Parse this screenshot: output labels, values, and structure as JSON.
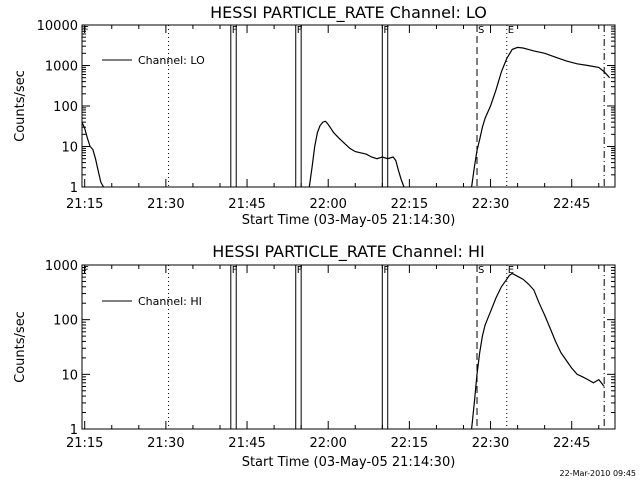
{
  "footer": "22-Mar-2010 09:45",
  "chart_data": [
    {
      "type": "line",
      "title": "HESSI PARTICLE_RATE Channel: LO",
      "xlabel": "Start Time (03-May-05 21:14:30)",
      "ylabel": "Counts/sec",
      "y_scale": "log",
      "ylim": [
        1,
        10000
      ],
      "xlim": [
        "21:14:30",
        "22:53:00"
      ],
      "x_ticks": [
        "21:15",
        "21:30",
        "21:45",
        "22:00",
        "22:15",
        "22:30",
        "22:45"
      ],
      "y_ticks": [
        "1",
        "10",
        "100",
        "1000",
        "10000"
      ],
      "legend": "top-left",
      "series": [
        {
          "name": "Channel: LO",
          "segments": [
            {
              "x": [
                "21:14:30",
                "21:15:00",
                "21:15:30",
                "21:16:00",
                "21:16:30",
                "21:17:00",
                "21:17:30",
                "21:18:00",
                "21:18:30"
              ],
              "y": [
                40,
                28,
                16,
                10,
                8.5,
                5,
                2.5,
                1.3,
                1
              ]
            },
            {
              "x": [
                "21:56:30",
                "21:57:00",
                "21:57:30",
                "21:58:00",
                "21:58:30",
                "21:59:00",
                "21:59:30",
                "22:00:00",
                "22:00:30",
                "22:01:00",
                "22:02:00",
                "22:03:00",
                "22:04:00",
                "22:05:00",
                "22:06:00",
                "22:07:00",
                "22:08:00",
                "22:09:00",
                "22:10:00",
                "22:11:00",
                "22:12:00",
                "22:12:30",
                "22:13:00",
                "22:13:30",
                "22:14:00"
              ],
              "y": [
                1,
                3,
                10,
                22,
                33,
                40,
                42,
                35,
                28,
                22,
                16,
                12,
                9,
                7.5,
                7,
                6.5,
                5.5,
                5,
                5.5,
                5,
                5.5,
                4.5,
                2.5,
                1.5,
                1
              ]
            },
            {
              "x": [
                "22:26:30",
                "22:27:00",
                "22:27:30",
                "22:28:00",
                "22:28:30",
                "22:29:00",
                "22:30:00",
                "22:31:00",
                "22:32:00",
                "22:33:00",
                "22:34:00",
                "22:35:00",
                "22:36:00",
                "22:37:00",
                "22:38:00",
                "22:40:00",
                "22:42:00",
                "22:44:00",
                "22:46:00",
                "22:48:00",
                "22:50:00",
                "22:51:00",
                "22:52:00"
              ],
              "y": [
                1,
                3,
                8,
                15,
                30,
                50,
                100,
                250,
                700,
                1500,
                2500,
                2800,
                2700,
                2500,
                2300,
                2000,
                1600,
                1300,
                1100,
                1000,
                900,
                700,
                500
              ]
            }
          ]
        }
      ],
      "markers": [
        {
          "label": "F",
          "x": "21:14:30",
          "style": "solid"
        },
        {
          "label": "",
          "x": "21:30:30",
          "style": "dotted"
        },
        {
          "label": "F",
          "x": "21:42:00",
          "style": "solid"
        },
        {
          "label": "",
          "x": "21:43:00",
          "style": "solid"
        },
        {
          "label": "F",
          "x": "21:54:00",
          "style": "solid"
        },
        {
          "label": "",
          "x": "21:55:00",
          "style": "solid"
        },
        {
          "label": "F",
          "x": "22:10:00",
          "style": "solid"
        },
        {
          "label": "",
          "x": "22:11:00",
          "style": "solid"
        },
        {
          "label": "S",
          "x": "22:27:30",
          "style": "dashed"
        },
        {
          "label": "E",
          "x": "22:33:00",
          "style": "dotted"
        },
        {
          "label": "",
          "x": "22:51:00",
          "style": "dashdot"
        }
      ]
    },
    {
      "type": "line",
      "title": "HESSI PARTICLE_RATE Channel: HI",
      "xlabel": "Start Time (03-May-05 21:14:30)",
      "ylabel": "Counts/sec",
      "y_scale": "log",
      "ylim": [
        1,
        1000
      ],
      "xlim": [
        "21:14:30",
        "22:53:00"
      ],
      "x_ticks": [
        "21:15",
        "21:30",
        "21:45",
        "22:00",
        "22:15",
        "22:30",
        "22:45"
      ],
      "y_ticks": [
        "1",
        "10",
        "100",
        "1000"
      ],
      "legend": "top-left",
      "series": [
        {
          "name": "Channel: HI",
          "segments": [
            {
              "x": [
                "22:26:30",
                "22:27:00",
                "22:27:30",
                "22:28:00",
                "22:28:30",
                "22:29:00",
                "22:30:00",
                "22:31:00",
                "22:32:00",
                "22:33:00",
                "22:33:30",
                "22:34:00",
                "22:35:00",
                "22:36:00",
                "22:37:00",
                "22:38:00",
                "22:39:00",
                "22:40:00",
                "22:41:00",
                "22:42:00",
                "22:43:00",
                "22:44:00",
                "22:45:00",
                "22:46:00",
                "22:47:00",
                "22:48:00",
                "22:49:00",
                "22:50:00",
                "22:51:00"
              ],
              "y": [
                1,
                3,
                10,
                25,
                50,
                80,
                140,
                250,
                400,
                550,
                650,
                700,
                620,
                550,
                450,
                350,
                200,
                120,
                70,
                40,
                25,
                18,
                13,
                10,
                9,
                8,
                7,
                8,
                6
              ]
            }
          ]
        }
      ],
      "markers": [
        {
          "label": "F",
          "x": "21:14:30",
          "style": "solid"
        },
        {
          "label": "",
          "x": "21:30:30",
          "style": "dotted"
        },
        {
          "label": "F",
          "x": "21:42:00",
          "style": "solid"
        },
        {
          "label": "",
          "x": "21:43:00",
          "style": "solid"
        },
        {
          "label": "F",
          "x": "21:54:00",
          "style": "solid"
        },
        {
          "label": "",
          "x": "21:55:00",
          "style": "solid"
        },
        {
          "label": "F",
          "x": "22:10:00",
          "style": "solid"
        },
        {
          "label": "",
          "x": "22:11:00",
          "style": "solid"
        },
        {
          "label": "S",
          "x": "22:27:30",
          "style": "dashed"
        },
        {
          "label": "E",
          "x": "22:33:00",
          "style": "dotted"
        },
        {
          "label": "",
          "x": "22:51:00",
          "style": "dashdot"
        }
      ]
    }
  ]
}
